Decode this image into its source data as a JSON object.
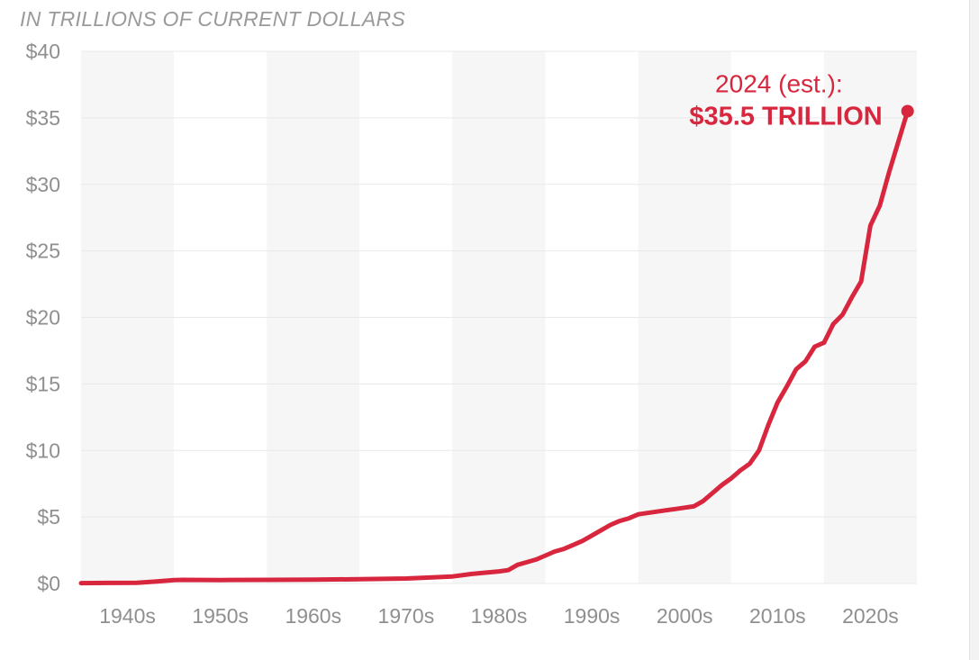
{
  "chart_data": {
    "type": "line",
    "subtitle": "IN TRILLIONS OF CURRENT DOLLARS",
    "ylim": [
      0,
      40
    ],
    "xlim": [
      1935,
      2025
    ],
    "y_ticks": [
      {
        "value": 0,
        "label": "$0"
      },
      {
        "value": 5,
        "label": "$5"
      },
      {
        "value": 10,
        "label": "$10"
      },
      {
        "value": 15,
        "label": "$15"
      },
      {
        "value": 20,
        "label": "$20"
      },
      {
        "value": 25,
        "label": "$25"
      },
      {
        "value": 30,
        "label": "$30"
      },
      {
        "value": 35,
        "label": "$35"
      },
      {
        "value": 40,
        "label": "$40"
      }
    ],
    "x_ticks": [
      {
        "start": 1935,
        "end": 1945,
        "label": "1940s",
        "shaded": false
      },
      {
        "start": 1945,
        "end": 1955,
        "label": "1950s",
        "shaded": true
      },
      {
        "start": 1955,
        "end": 1965,
        "label": "1960s",
        "shaded": false
      },
      {
        "start": 1965,
        "end": 1975,
        "label": "1970s",
        "shaded": true
      },
      {
        "start": 1975,
        "end": 1985,
        "label": "1980s",
        "shaded": false
      },
      {
        "start": 1985,
        "end": 1995,
        "label": "1990s",
        "shaded": true
      },
      {
        "start": 1995,
        "end": 2005,
        "label": "2000s",
        "shaded": false
      },
      {
        "start": 2005,
        "end": 2015,
        "label": "2010s",
        "shaded": true
      },
      {
        "start": 2015,
        "end": 2025,
        "label": "2020s",
        "shaded": false
      }
    ],
    "grid": true,
    "series": [
      {
        "color": "#d7263d",
        "points": [
          [
            1935,
            0.03
          ],
          [
            1938,
            0.04
          ],
          [
            1941,
            0.05
          ],
          [
            1943,
            0.14
          ],
          [
            1945,
            0.26
          ],
          [
            1946,
            0.27
          ],
          [
            1950,
            0.26
          ],
          [
            1955,
            0.27
          ],
          [
            1960,
            0.29
          ],
          [
            1965,
            0.32
          ],
          [
            1970,
            0.37
          ],
          [
            1972,
            0.43
          ],
          [
            1975,
            0.53
          ],
          [
            1977,
            0.71
          ],
          [
            1978,
            0.78
          ],
          [
            1980,
            0.91
          ],
          [
            1981,
            1.0
          ],
          [
            1982,
            1.4
          ],
          [
            1983,
            1.6
          ],
          [
            1984,
            1.8
          ],
          [
            1985,
            2.1
          ],
          [
            1986,
            2.4
          ],
          [
            1987,
            2.6
          ],
          [
            1988,
            2.9
          ],
          [
            1989,
            3.2
          ],
          [
            1990,
            3.6
          ],
          [
            1991,
            4.0
          ],
          [
            1992,
            4.4
          ],
          [
            1993,
            4.7
          ],
          [
            1994,
            4.9
          ],
          [
            1995,
            5.2
          ],
          [
            1996,
            5.3
          ],
          [
            1997,
            5.4
          ],
          [
            1998,
            5.5
          ],
          [
            1999,
            5.6
          ],
          [
            2000,
            5.7
          ],
          [
            2001,
            5.8
          ],
          [
            2002,
            6.2
          ],
          [
            2003,
            6.8
          ],
          [
            2004,
            7.4
          ],
          [
            2005,
            7.9
          ],
          [
            2006,
            8.5
          ],
          [
            2007,
            9.0
          ],
          [
            2008,
            10.0
          ],
          [
            2009,
            11.9
          ],
          [
            2010,
            13.6
          ],
          [
            2011,
            14.8
          ],
          [
            2012,
            16.1
          ],
          [
            2013,
            16.7
          ],
          [
            2014,
            17.8
          ],
          [
            2015,
            18.1
          ],
          [
            2016,
            19.5
          ],
          [
            2017,
            20.2
          ],
          [
            2018,
            21.5
          ],
          [
            2019,
            22.7
          ],
          [
            2020,
            26.9
          ],
          [
            2021,
            28.4
          ],
          [
            2022,
            30.9
          ],
          [
            2023,
            33.2
          ],
          [
            2024,
            35.5
          ]
        ]
      }
    ],
    "annotation": {
      "line1": "2024 (est.):",
      "line2": "$35.5 TRILLION",
      "x": 2024,
      "y": 35.5,
      "color": "#d7263d"
    }
  }
}
